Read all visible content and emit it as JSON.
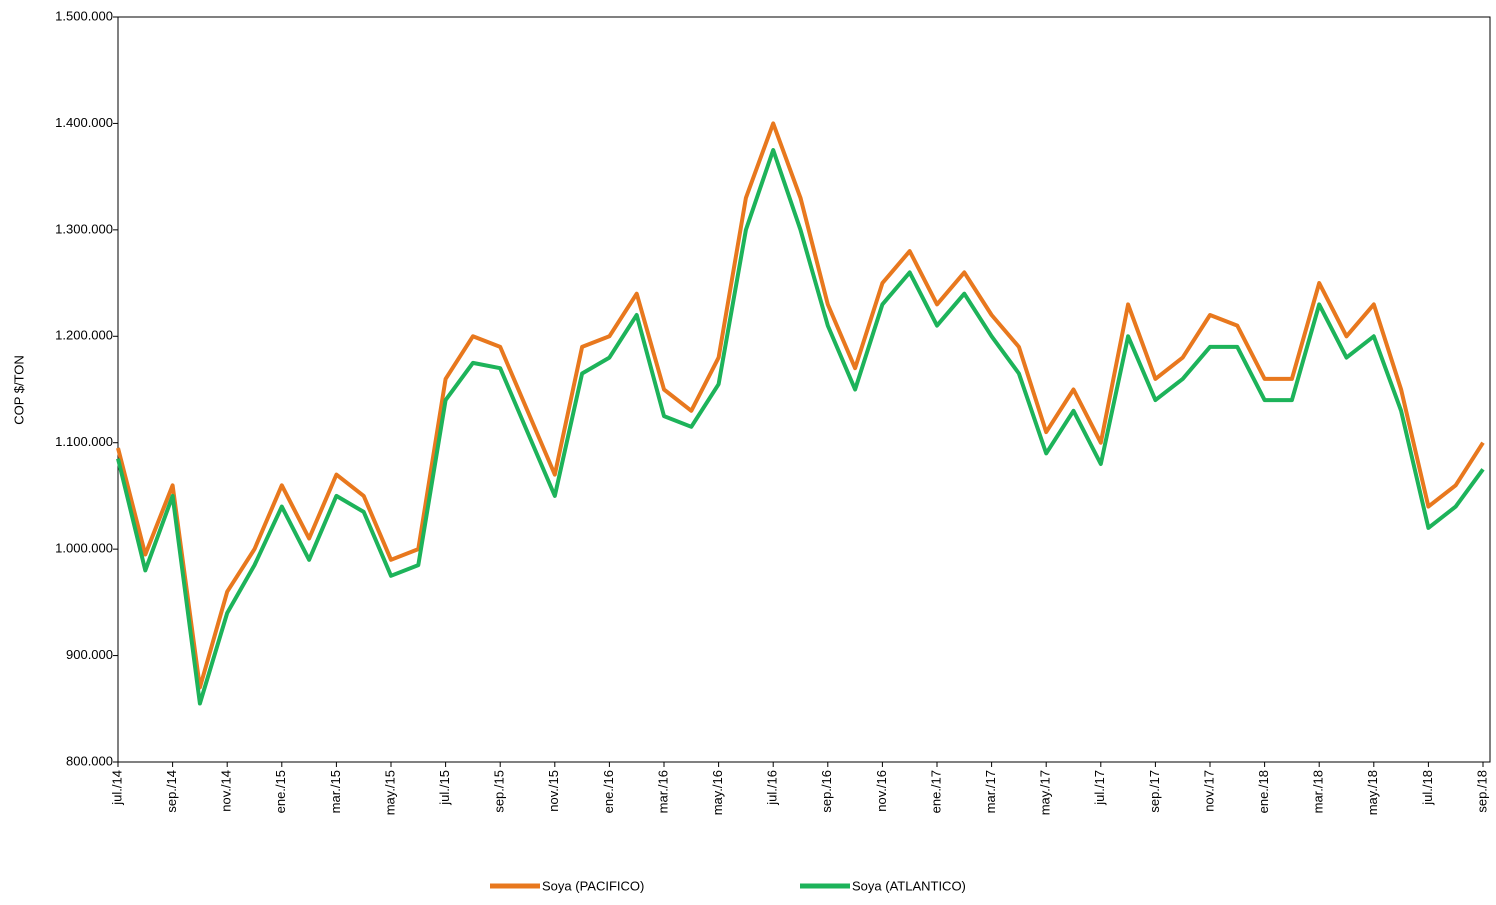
{
  "chart_data": {
    "type": "line",
    "y_label": "COP $/TON",
    "x": [
      "2014-07",
      "2014-08",
      "2014-09",
      "2014-10",
      "2014-11",
      "2014-12",
      "2015-01",
      "2015-02",
      "2015-03",
      "2015-04",
      "2015-05",
      "2015-06",
      "2015-07",
      "2015-08",
      "2015-09",
      "2015-10",
      "2015-11",
      "2015-12",
      "2016-01",
      "2016-02",
      "2016-03",
      "2016-04",
      "2016-05",
      "2016-06",
      "2016-07",
      "2016-08",
      "2016-09",
      "2016-10",
      "2016-11",
      "2016-12",
      "2017-01",
      "2017-02",
      "2017-03",
      "2017-04",
      "2017-05",
      "2017-06",
      "2017-07",
      "2017-08",
      "2017-09",
      "2017-10",
      "2017-11",
      "2017-12",
      "2018-01",
      "2018-02",
      "2018-03",
      "2018-04",
      "2018-05",
      "2018-06",
      "2018-07",
      "2018-08",
      "2018-09"
    ],
    "series": [
      {
        "name": "Soya (PACIFICO)",
        "color": "#e8781e",
        "values": [
          1095000,
          995000,
          1060000,
          870000,
          960000,
          1000000,
          1060000,
          1010000,
          1070000,
          1050000,
          990000,
          1000000,
          1160000,
          1200000,
          1190000,
          1130000,
          1070000,
          1190000,
          1200000,
          1240000,
          1150000,
          1130000,
          1180000,
          1330000,
          1400000,
          1330000,
          1230000,
          1170000,
          1250000,
          1280000,
          1230000,
          1260000,
          1220000,
          1190000,
          1110000,
          1150000,
          1100000,
          1230000,
          1160000,
          1180000,
          1220000,
          1210000,
          1160000,
          1160000,
          1250000,
          1200000,
          1230000,
          1150000,
          1040000,
          1060000,
          1100000
        ]
      },
      {
        "name": "Soya (ATLANTICO)",
        "color": "#1db35a",
        "values": [
          1085000,
          980000,
          1050000,
          855000,
          940000,
          985000,
          1040000,
          990000,
          1050000,
          1035000,
          975000,
          985000,
          1140000,
          1175000,
          1170000,
          1110000,
          1050000,
          1165000,
          1180000,
          1220000,
          1125000,
          1115000,
          1155000,
          1300000,
          1375000,
          1300000,
          1210000,
          1150000,
          1230000,
          1260000,
          1210000,
          1240000,
          1200000,
          1165000,
          1090000,
          1130000,
          1080000,
          1200000,
          1140000,
          1160000,
          1190000,
          1190000,
          1140000,
          1140000,
          1230000,
          1180000,
          1200000,
          1130000,
          1020000,
          1040000,
          1075000
        ]
      }
    ],
    "xlim": [
      "2014-07",
      "2018-09"
    ],
    "xticks": [
      {
        "value": "2014-07",
        "label": "jul./14"
      },
      {
        "value": "2014-09",
        "label": "sep./14"
      },
      {
        "value": "2014-11",
        "label": "nov./14"
      },
      {
        "value": "2015-01",
        "label": "ene./15"
      },
      {
        "value": "2015-03",
        "label": "mar./15"
      },
      {
        "value": "2015-05",
        "label": "may./15"
      },
      {
        "value": "2015-07",
        "label": "jul./15"
      },
      {
        "value": "2015-09",
        "label": "sep./15"
      },
      {
        "value": "2015-11",
        "label": "nov./15"
      },
      {
        "value": "2016-01",
        "label": "ene./16"
      },
      {
        "value": "2016-03",
        "label": "mar./16"
      },
      {
        "value": "2016-05",
        "label": "may./16"
      },
      {
        "value": "2016-07",
        "label": "jul./16"
      },
      {
        "value": "2016-09",
        "label": "sep./16"
      },
      {
        "value": "2016-11",
        "label": "nov./16"
      },
      {
        "value": "2017-01",
        "label": "ene./17"
      },
      {
        "value": "2017-03",
        "label": "mar./17"
      },
      {
        "value": "2017-05",
        "label": "may./17"
      },
      {
        "value": "2017-07",
        "label": "jul./17"
      },
      {
        "value": "2017-09",
        "label": "sep./17"
      },
      {
        "value": "2017-11",
        "label": "nov./17"
      },
      {
        "value": "2018-01",
        "label": "ene./18"
      },
      {
        "value": "2018-03",
        "label": "mar./18"
      },
      {
        "value": "2018-05",
        "label": "may./18"
      },
      {
        "value": "2018-07",
        "label": "jul./18"
      },
      {
        "value": "2018-09",
        "label": "sep./18"
      }
    ],
    "ylim": [
      800000,
      1500000
    ],
    "yticks": [
      {
        "value": 800000,
        "label": "800.000"
      },
      {
        "value": 900000,
        "label": "900.000"
      },
      {
        "value": 1000000,
        "label": "1.000.000"
      },
      {
        "value": 1100000,
        "label": "1.100.000"
      },
      {
        "value": 1200000,
        "label": "1.200.000"
      },
      {
        "value": 1300000,
        "label": "1.300.000"
      },
      {
        "value": 1400000,
        "label": "1.400.000"
      },
      {
        "value": 1500000,
        "label": "1.500.000"
      }
    ],
    "legend": "bottom"
  }
}
